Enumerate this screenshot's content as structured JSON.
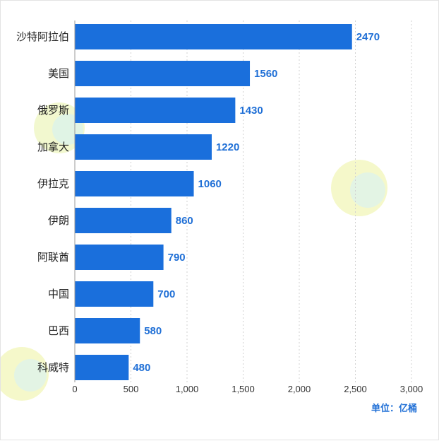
{
  "chart_data": {
    "type": "bar",
    "orientation": "horizontal",
    "categories": [
      "沙特阿拉伯",
      "美国",
      "俄罗斯",
      "加拿大",
      "伊拉克",
      "伊朗",
      "阿联酋",
      "中国",
      "巴西",
      "科威特"
    ],
    "values": [
      2470,
      1560,
      1430,
      1220,
      1060,
      860,
      790,
      700,
      580,
      480
    ],
    "data_labels": [
      "2470",
      "1560",
      "1430",
      "1220",
      "1060",
      "860",
      "790",
      "700",
      "580",
      "480"
    ],
    "xlim": [
      0,
      3000
    ],
    "x_ticks": [
      0,
      500,
      1000,
      1500,
      2000,
      2500,
      3000
    ],
    "x_tick_labels": [
      "0",
      "500",
      "1,000",
      "1,500",
      "2,000",
      "2,500",
      "3,000"
    ],
    "grid": "vertical dashed",
    "bar_color": "#1a6fdc",
    "label_color": "#1f6fd6",
    "unit_label": "单位：亿桶"
  }
}
